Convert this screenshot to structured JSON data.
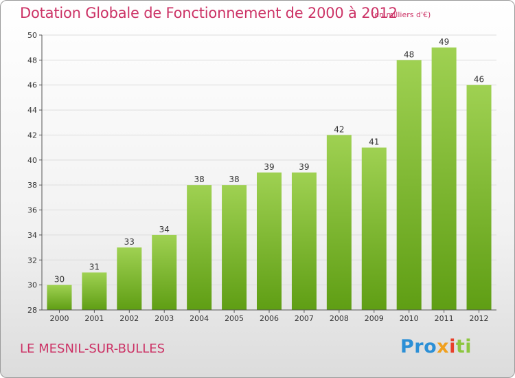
{
  "header": {
    "title": "Dotation Globale de Fonctionnement de 2000 à 2012",
    "unit_note": "(en milliers d'€)"
  },
  "footer": {
    "commune": "LE MESNIL-SUR-BULLES",
    "logo": [
      "Pro",
      "x",
      "i",
      "ti"
    ]
  },
  "colors": {
    "title": "#cc3366",
    "bar_top": "#9fd152",
    "bar_bottom": "#5f9e14",
    "grid": "#dddddd",
    "axis": "#555555"
  },
  "chart_data": {
    "type": "bar",
    "categories": [
      "2000",
      "2001",
      "2002",
      "2003",
      "2004",
      "2005",
      "2006",
      "2007",
      "2008",
      "2009",
      "2010",
      "2011",
      "2012"
    ],
    "values": [
      30,
      31,
      33,
      34,
      38,
      38,
      39,
      39,
      42,
      41,
      48,
      49,
      46
    ],
    "ylim": [
      28,
      50
    ],
    "yticks": [
      28,
      30,
      32,
      34,
      36,
      38,
      40,
      42,
      44,
      46,
      48,
      50
    ],
    "grid": true,
    "data_labels": true
  }
}
